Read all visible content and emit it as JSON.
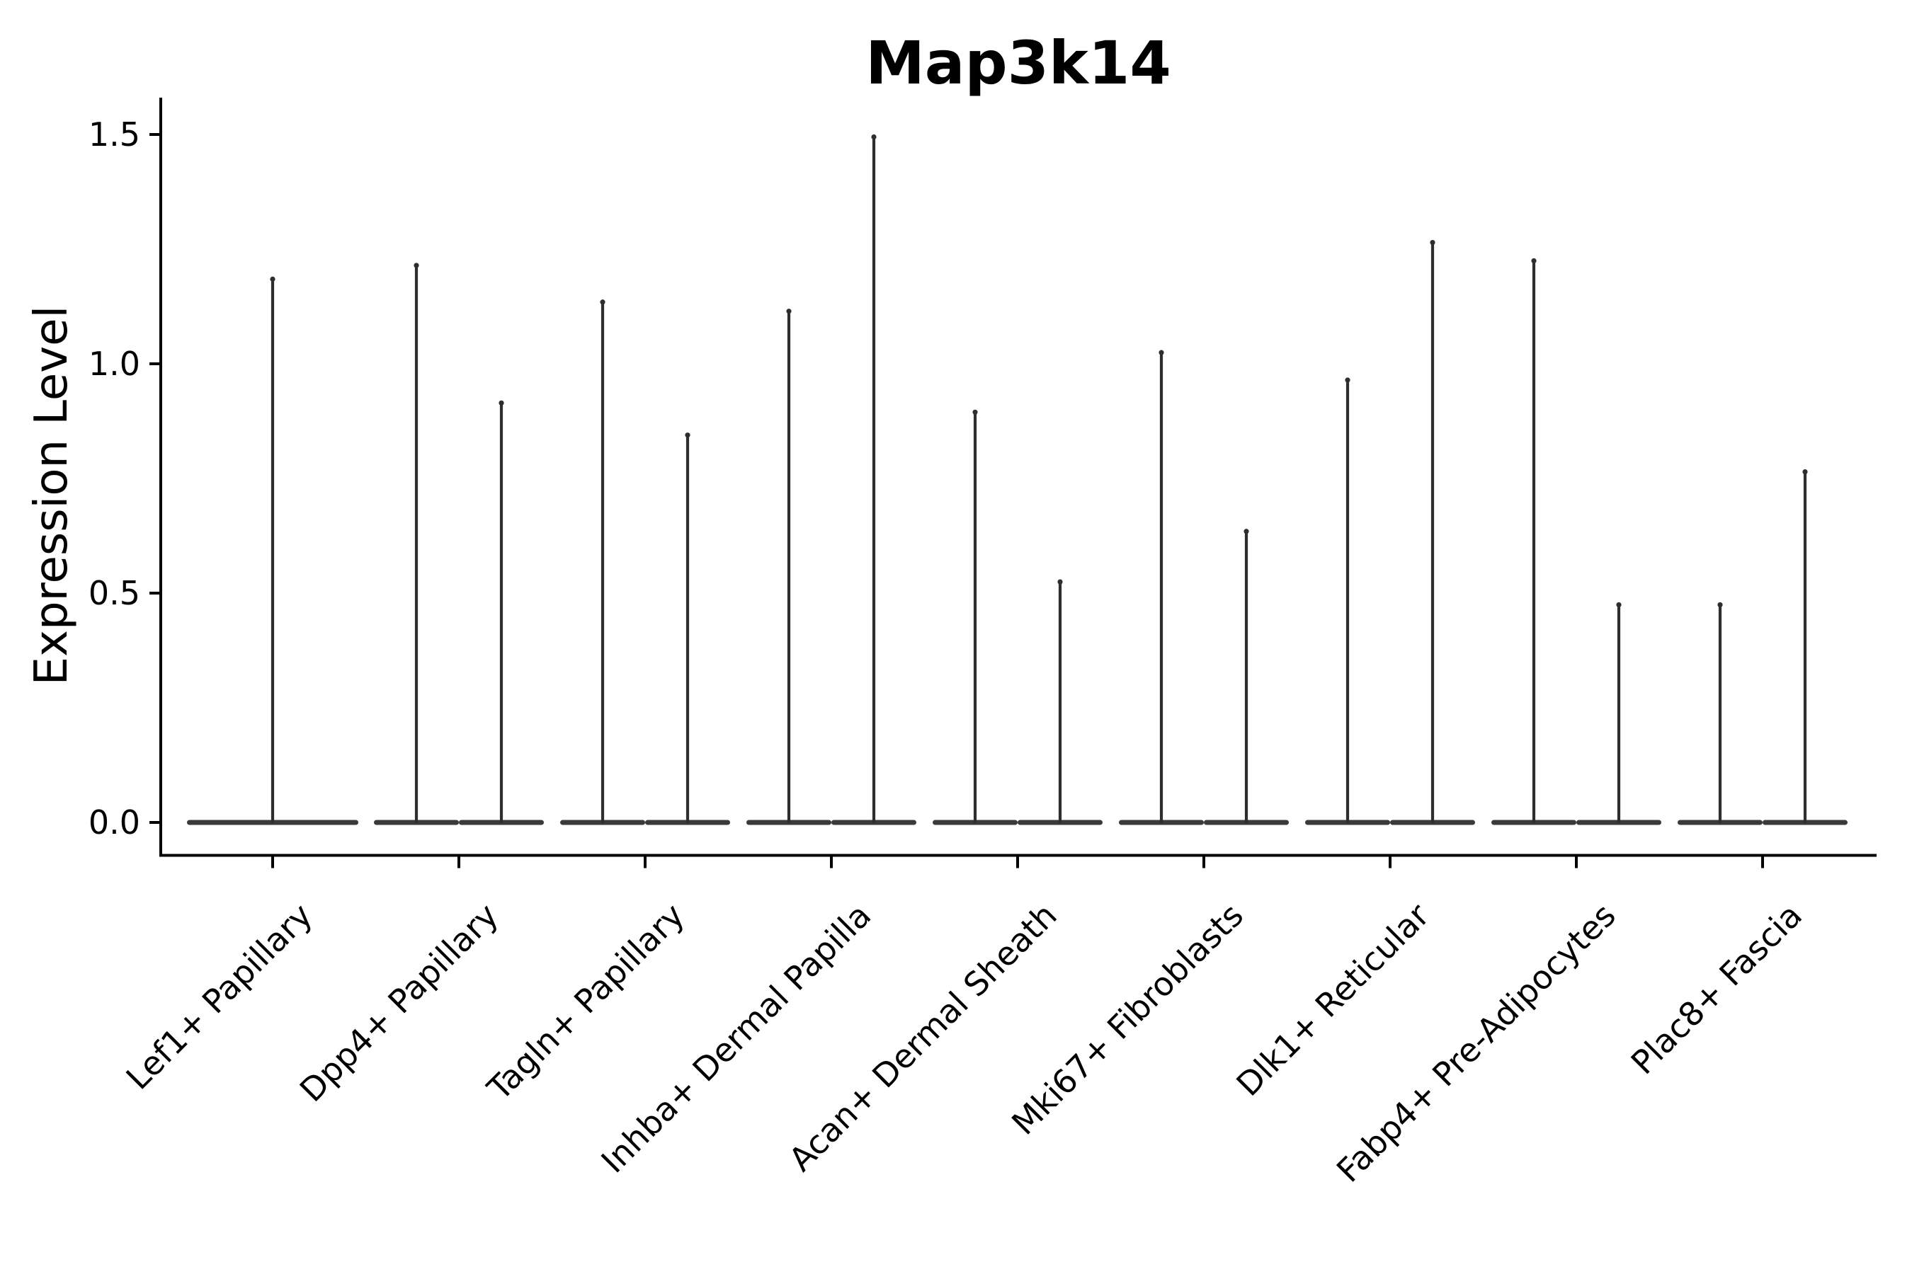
{
  "figure": {
    "background": "#ffffff"
  },
  "chart_data": {
    "type": "violin",
    "title": "Map3k14",
    "xlabel": "",
    "ylabel": "Expression Level",
    "yticks": [
      0.0,
      0.5,
      1.0,
      1.5
    ],
    "ytick_labels": [
      "0.0",
      "0.5",
      "1.0",
      "1.5"
    ],
    "ylim": [
      -0.07,
      1.58
    ],
    "grid": false,
    "legend": null,
    "categories": [
      "Lef1+ Papillary",
      "Dpp4+ Papillary",
      "Tagln+ Papillary",
      "Inhba+ Dermal Papilla",
      "Acan+ Dermal Sheath",
      "Mki67+ Fibroblasts",
      "Dlk1+ Reticular",
      "Fabp4+ Pre-Adipocytes",
      "Plac8+ Fascia"
    ],
    "violins": [
      {
        "category": "Lef1+ Papillary",
        "spike_maxima": [
          1.19
        ]
      },
      {
        "category": "Dpp4+ Papillary",
        "spike_maxima": [
          1.22,
          0.92
        ]
      },
      {
        "category": "Tagln+ Papillary",
        "spike_maxima": [
          1.14,
          0.85
        ]
      },
      {
        "category": "Inhba+ Dermal Papilla",
        "spike_maxima": [
          1.12,
          1.5
        ]
      },
      {
        "category": "Acan+ Dermal Sheath",
        "spike_maxima": [
          0.9,
          0.53
        ]
      },
      {
        "category": "Mki67+ Fibroblasts",
        "spike_maxima": [
          1.03,
          0.64
        ]
      },
      {
        "category": "Dlk1+ Reticular",
        "spike_maxima": [
          0.97,
          1.27
        ]
      },
      {
        "category": "Fabp4+ Pre-Adipocytes",
        "spike_maxima": [
          1.23,
          0.48
        ]
      },
      {
        "category": "Plac8+ Fascia",
        "spike_maxima": [
          0.48,
          0.77
        ]
      }
    ],
    "description": "Violin plot of Map3k14 expression; density concentrated at 0 gives wide flat bases with thin spikes up to each group maximum.",
    "colors": {
      "violin": "#2e2e2e",
      "violin_base": "#3a3a3a",
      "axis": "#000000",
      "text": "#000000"
    }
  }
}
